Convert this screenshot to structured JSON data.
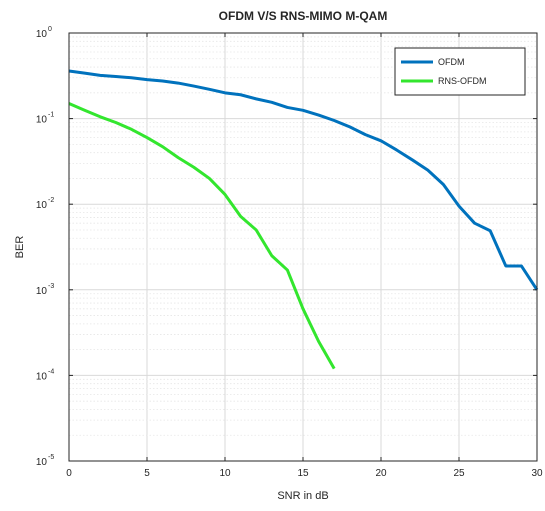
{
  "chart_data": {
    "type": "line",
    "title": "OFDM V/S RNS-MIMO M-QAM",
    "xlabel": "SNR in dB",
    "ylabel": "BER",
    "xlim": [
      0,
      30
    ],
    "ylim": [
      1e-05,
      1
    ],
    "y_scale": "log",
    "grid": true,
    "legend_position": "top-right",
    "x_ticks": [
      0,
      5,
      10,
      15,
      20,
      25,
      30
    ],
    "x_tick_labels": [
      "0",
      "5",
      "10",
      "15",
      "20",
      "25",
      "30"
    ],
    "y_ticks": [
      {
        "value": 1,
        "base": "10",
        "exponent": "0"
      },
      {
        "value": 0.1,
        "base": "10",
        "exponent": "-1"
      },
      {
        "value": 0.01,
        "base": "10",
        "exponent": "-2"
      },
      {
        "value": 0.001,
        "base": "10",
        "exponent": "-3"
      },
      {
        "value": 0.0001,
        "base": "10",
        "exponent": "-4"
      },
      {
        "value": 1e-05,
        "base": "10",
        "exponent": "-5"
      }
    ],
    "series": [
      {
        "name": "OFDM",
        "color": "#0072BD",
        "x": [
          0,
          1,
          2,
          3,
          4,
          5,
          6,
          7,
          8,
          9,
          10,
          11,
          12,
          13,
          14,
          15,
          16,
          17,
          18,
          19,
          20,
          21,
          22,
          23,
          24,
          25,
          26,
          27,
          28,
          29,
          30
        ],
        "y": [
          0.36,
          0.34,
          0.32,
          0.31,
          0.3,
          0.285,
          0.275,
          0.26,
          0.24,
          0.22,
          0.2,
          0.19,
          0.17,
          0.155,
          0.135,
          0.125,
          0.11,
          0.095,
          0.08,
          0.065,
          0.055,
          0.043,
          0.033,
          0.025,
          0.017,
          0.0095,
          0.006,
          0.0049,
          0.0019,
          0.0019,
          0.001
        ]
      },
      {
        "name": "RNS-OFDM",
        "color": "#33E62E",
        "x": [
          0,
          1,
          2,
          3,
          4,
          5,
          6,
          7,
          8,
          9,
          10,
          11,
          12,
          13,
          14,
          15,
          16,
          17
        ],
        "y": [
          0.15,
          0.125,
          0.105,
          0.09,
          0.075,
          0.06,
          0.047,
          0.035,
          0.027,
          0.02,
          0.013,
          0.0072,
          0.005,
          0.0025,
          0.0017,
          0.0006,
          0.00025,
          0.00012
        ]
      }
    ]
  }
}
